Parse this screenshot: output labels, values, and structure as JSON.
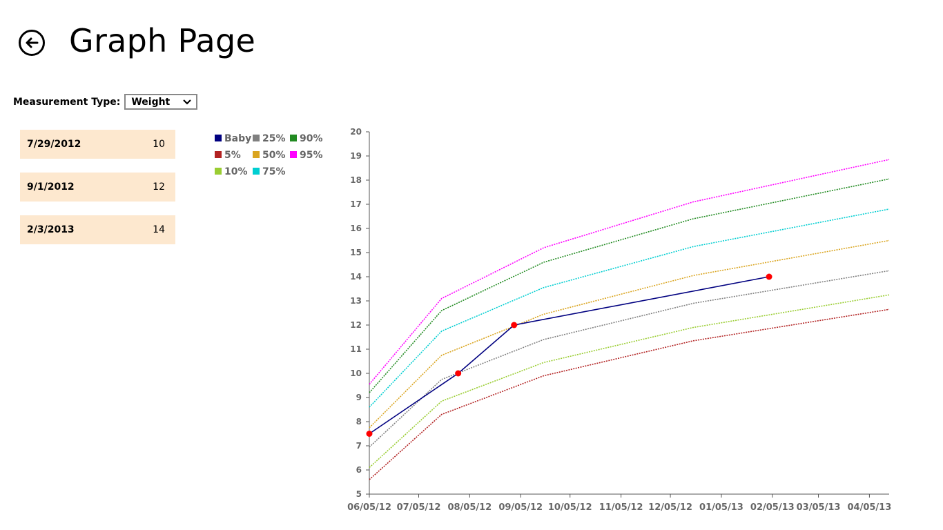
{
  "header": {
    "title": "Graph Page"
  },
  "measurement": {
    "label": "Measurement Type:",
    "selected": "Weight"
  },
  "entries": [
    {
      "date": "7/29/2012",
      "value": "10"
    },
    {
      "date": "9/1/2012",
      "value": "12"
    },
    {
      "date": "2/3/2013",
      "value": "14"
    }
  ],
  "chart_data": {
    "type": "line",
    "title": "",
    "xlabel": "",
    "ylabel": "",
    "ylim": [
      5,
      20
    ],
    "y_ticks": [
      5,
      6,
      7,
      8,
      9,
      10,
      11,
      12,
      13,
      14,
      15,
      16,
      17,
      18,
      19,
      20
    ],
    "x_tick_labels": [
      "06/05/12",
      "07/05/12",
      "08/05/12",
      "09/05/12",
      "10/05/12",
      "11/05/12",
      "12/05/12",
      "01/05/13",
      "02/05/13",
      "03/05/13",
      "04/05/13"
    ],
    "x_tick_dates": [
      "2012-06-05",
      "2012-07-05",
      "2012-08-05",
      "2012-09-05",
      "2012-10-05",
      "2012-11-05",
      "2012-12-05",
      "2013-01-05",
      "2013-02-05",
      "2013-03-05",
      "2013-04-05"
    ],
    "xlim": [
      "2012-06-05",
      "2013-04-17"
    ],
    "legend": {
      "placement": "top-left",
      "columns": 3
    },
    "grid": false,
    "series": [
      {
        "name": "Baby",
        "color": "#000080",
        "style": "solid",
        "markers": true,
        "marker_color": "#ff0000",
        "points": [
          [
            "2012-06-05",
            7.5
          ],
          [
            "2012-07-29",
            10
          ],
          [
            "2012-09-01",
            12
          ],
          [
            "2013-02-03",
            14
          ]
        ]
      },
      {
        "name": "5%",
        "color": "#b22222",
        "style": "dotted",
        "points": [
          [
            "2012-06-05",
            5.6
          ],
          [
            "2012-07-19",
            8.3
          ],
          [
            "2012-09-19",
            9.9
          ],
          [
            "2012-12-19",
            11.35
          ],
          [
            "2013-04-17",
            12.65
          ]
        ]
      },
      {
        "name": "10%",
        "color": "#9acd32",
        "style": "dotted",
        "points": [
          [
            "2012-06-05",
            6.1
          ],
          [
            "2012-07-19",
            8.85
          ],
          [
            "2012-09-19",
            10.45
          ],
          [
            "2012-12-19",
            11.9
          ],
          [
            "2013-04-17",
            13.25
          ]
        ]
      },
      {
        "name": "25%",
        "color": "#808080",
        "style": "dotted",
        "points": [
          [
            "2012-06-05",
            6.95
          ],
          [
            "2012-07-19",
            9.75
          ],
          [
            "2012-09-19",
            11.4
          ],
          [
            "2012-12-19",
            12.9
          ],
          [
            "2013-04-17",
            14.25
          ]
        ]
      },
      {
        "name": "50%",
        "color": "#daa520",
        "style": "dotted",
        "points": [
          [
            "2012-06-05",
            7.75
          ],
          [
            "2012-07-19",
            10.75
          ],
          [
            "2012-09-19",
            12.45
          ],
          [
            "2012-12-19",
            14.05
          ],
          [
            "2013-04-17",
            15.5
          ]
        ]
      },
      {
        "name": "75%",
        "color": "#00ced1",
        "style": "dotted",
        "points": [
          [
            "2012-06-05",
            8.6
          ],
          [
            "2012-07-19",
            11.75
          ],
          [
            "2012-09-19",
            13.55
          ],
          [
            "2012-12-19",
            15.25
          ],
          [
            "2013-04-17",
            16.8
          ]
        ]
      },
      {
        "name": "90%",
        "color": "#228b22",
        "style": "dotted",
        "points": [
          [
            "2012-06-05",
            9.2
          ],
          [
            "2012-07-19",
            12.6
          ],
          [
            "2012-09-19",
            14.6
          ],
          [
            "2012-12-19",
            16.4
          ],
          [
            "2013-04-17",
            18.05
          ]
        ]
      },
      {
        "name": "95%",
        "color": "#ff00ff",
        "style": "dotted",
        "points": [
          [
            "2012-06-05",
            9.55
          ],
          [
            "2012-07-19",
            13.1
          ],
          [
            "2012-09-19",
            15.2
          ],
          [
            "2012-12-19",
            17.1
          ],
          [
            "2013-04-17",
            18.85
          ]
        ]
      }
    ]
  },
  "legend_order": [
    "Baby",
    "25%",
    "90%",
    "5%",
    "50%",
    "95%",
    "10%",
    "75%"
  ]
}
